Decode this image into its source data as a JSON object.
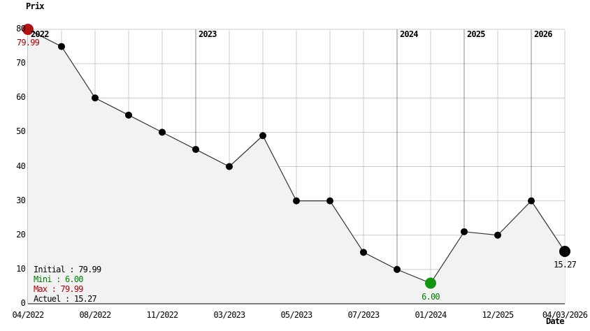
{
  "chart_data": {
    "type": "line",
    "title": "",
    "ylabel": "Prix",
    "xlabel": "Date",
    "ylim": [
      0,
      80
    ],
    "y_tick_step": 10,
    "y_ticks": [
      0,
      10,
      20,
      30,
      40,
      50,
      60,
      70,
      80
    ],
    "grid": true,
    "values": [
      79.99,
      75,
      60,
      55,
      50,
      45,
      40,
      49,
      30,
      30,
      15,
      10,
      6,
      21,
      20,
      30,
      15.27
    ],
    "x_ticks": [
      {
        "index": 0,
        "label": "04/2022"
      },
      {
        "index": 2,
        "label": "08/2022"
      },
      {
        "index": 4,
        "label": "11/2022"
      },
      {
        "index": 6,
        "label": "03/2023"
      },
      {
        "index": 8,
        "label": "05/2023"
      },
      {
        "index": 10,
        "label": "07/2023"
      },
      {
        "index": 12,
        "label": "01/2024"
      },
      {
        "index": 14,
        "label": "12/2025"
      },
      {
        "index": 16,
        "label": "04/03/2026"
      }
    ],
    "year_markers": [
      {
        "index": 0,
        "label": "2022"
      },
      {
        "index": 5,
        "label": "2023"
      },
      {
        "index": 11,
        "label": "2024"
      },
      {
        "index": 13,
        "label": "2025"
      },
      {
        "index": 15,
        "label": "2026"
      }
    ],
    "markers": [
      {
        "index": 0,
        "kind": "start",
        "value_label": "79.99",
        "dot_color": "#b31212",
        "label_color": "#aa0000"
      },
      {
        "index": 12,
        "kind": "min",
        "value_label": "6.00",
        "dot_color": "#12940e",
        "label_color": "#008000"
      },
      {
        "index": 16,
        "kind": "current",
        "value_label": "15.27",
        "dot_color": "#000000",
        "label_color": "#000000"
      }
    ]
  },
  "legend": {
    "items": [
      {
        "text": "Initial : 79.99",
        "color": "#000000"
      },
      {
        "text": "Mini : 6.00",
        "color": "#008000"
      },
      {
        "text": "Max : 79.99",
        "color": "#aa0000"
      },
      {
        "text": "Actuel : 15.27",
        "color": "#000000"
      }
    ]
  },
  "colors": {
    "background": "#ffffff",
    "grid": "#cccccc",
    "year_line": "#888888",
    "line": "#333333",
    "area_fill": "#f2f2f2",
    "axis": "#000000"
  }
}
